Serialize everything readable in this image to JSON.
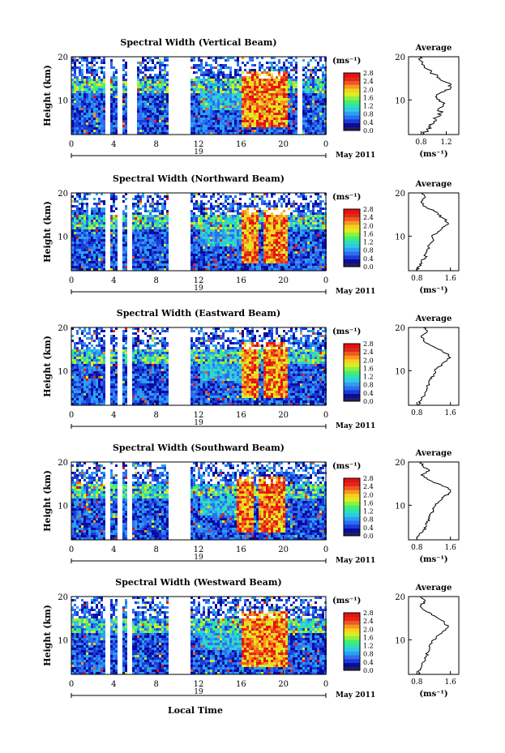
{
  "figure": {
    "xlabel": "Local Time",
    "date_label": "May 2011",
    "day_label": "19",
    "ylabel": "Height (km)",
    "unit_label": "(ms⁻¹)",
    "avg_title": "Average",
    "avg_xlabel": "(ms⁻¹)"
  },
  "colorbar": {
    "ticks": [
      "0.0",
      "0.4",
      "0.8",
      "1.2",
      "1.6",
      "2.0",
      "2.4",
      "2.8"
    ],
    "colors": [
      "#202060",
      "#0b0b9e",
      "#1a3cd8",
      "#2f6cf0",
      "#2aa0f0",
      "#30c8e8",
      "#30e0b0",
      "#40f070",
      "#90f040",
      "#d8f020",
      "#f8d020",
      "#f89820",
      "#f05820",
      "#e02818",
      "#e81010"
    ]
  },
  "chart_data": [
    {
      "type": "heatmap",
      "title": "Spectral Width (Vertical Beam)",
      "x_ticks": [
        "0",
        "4",
        "8",
        "12",
        "16",
        "20",
        "0"
      ],
      "y_ticks": [
        "20",
        "10"
      ],
      "ylim": [
        2,
        20
      ],
      "xlim": [
        0,
        24
      ],
      "gaps_hours": [
        [
          3.0,
          3.5
        ],
        [
          4.2,
          4.6
        ],
        [
          5.2,
          6.0
        ],
        [
          9.0,
          11.2
        ],
        [
          21.2,
          21.6
        ]
      ],
      "high_width_regions_hours": [
        [
          16.0,
          17.5
        ],
        [
          17.5,
          20.2
        ]
      ],
      "avg_profile": {
        "xlabel": "(ms⁻¹)",
        "x_ticks": [
          "0.8",
          "1.2"
        ],
        "xlim": [
          0.6,
          1.4
        ],
        "y_ticks": [
          "20",
          "10"
        ],
        "ylim": [
          2,
          20
        ],
        "height_km": [
          2,
          3,
          4,
          5,
          6,
          7,
          8,
          9,
          10,
          11,
          12,
          13,
          14,
          15,
          16,
          17,
          18,
          19,
          20
        ],
        "width_ms": [
          0.82,
          0.9,
          0.95,
          1.0,
          1.05,
          1.12,
          1.08,
          1.15,
          1.1,
          1.05,
          1.18,
          1.28,
          1.22,
          1.1,
          1.0,
          0.92,
          0.85,
          0.8,
          0.78
        ]
      }
    },
    {
      "type": "heatmap",
      "title": "Spectral Width (Northward Beam)",
      "x_ticks": [
        "0",
        "4",
        "8",
        "12",
        "16",
        "20",
        "0"
      ],
      "y_ticks": [
        "20",
        "10"
      ],
      "ylim": [
        2,
        20
      ],
      "xlim": [
        0,
        24
      ],
      "gaps_hours": [
        [
          3.0,
          3.5
        ],
        [
          4.2,
          4.6
        ],
        [
          5.2,
          5.6
        ],
        [
          9.0,
          11.2
        ]
      ],
      "high_width_regions_hours": [
        [
          16.0,
          17.5
        ],
        [
          18.0,
          20.2
        ]
      ],
      "avg_profile": {
        "xlabel": "(ms⁻¹)",
        "x_ticks": [
          "0.8",
          "1.6"
        ],
        "xlim": [
          0.6,
          1.8
        ],
        "y_ticks": [
          "20",
          "10"
        ],
        "ylim": [
          2,
          20
        ],
        "height_km": [
          2,
          3,
          4,
          5,
          6,
          7,
          8,
          9,
          10,
          11,
          12,
          13,
          14,
          15,
          16,
          17,
          18,
          19,
          20
        ],
        "width_ms": [
          0.8,
          0.85,
          0.9,
          1.0,
          1.02,
          1.05,
          1.1,
          1.2,
          1.15,
          1.3,
          1.4,
          1.55,
          1.45,
          1.3,
          1.2,
          0.95,
          0.9,
          1.0,
          0.9
        ]
      }
    },
    {
      "type": "heatmap",
      "title": "Spectral Width (Eastward Beam)",
      "x_ticks": [
        "0",
        "4",
        "8",
        "12",
        "16",
        "20",
        "0"
      ],
      "y_ticks": [
        "20",
        "10"
      ],
      "ylim": [
        2,
        20
      ],
      "xlim": [
        0,
        24
      ],
      "gaps_hours": [
        [
          3.0,
          3.5
        ],
        [
          4.2,
          4.6
        ],
        [
          5.2,
          5.6
        ],
        [
          9.0,
          11.2
        ]
      ],
      "high_width_regions_hours": [
        [
          16.0,
          17.5
        ],
        [
          18.0,
          20.2
        ]
      ],
      "avg_profile": {
        "xlabel": "",
        "x_ticks": [
          "0.8",
          "1.6"
        ],
        "xlim": [
          0.6,
          1.8
        ],
        "y_ticks": [
          "20",
          "10"
        ],
        "ylim": [
          2,
          20
        ],
        "height_km": [
          2,
          3,
          4,
          5,
          6,
          7,
          8,
          9,
          10,
          11,
          12,
          13,
          14,
          15,
          16,
          17,
          18,
          19,
          20
        ],
        "width_ms": [
          0.82,
          0.88,
          0.95,
          1.0,
          1.05,
          1.08,
          1.1,
          1.2,
          1.22,
          1.35,
          1.45,
          1.6,
          1.5,
          1.3,
          1.1,
          0.95,
          0.9,
          1.05,
          0.95
        ]
      }
    },
    {
      "type": "heatmap",
      "title": "Spectral Width (Southward Beam)",
      "x_ticks": [
        "0",
        "4",
        "8",
        "12",
        "16",
        "20",
        "0"
      ],
      "y_ticks": [
        "20",
        "10"
      ],
      "ylim": [
        2,
        20
      ],
      "xlim": [
        0,
        24
      ],
      "gaps_hours": [
        [
          3.0,
          3.5
        ],
        [
          4.2,
          4.6
        ],
        [
          5.2,
          5.6
        ],
        [
          9.0,
          11.2
        ]
      ],
      "high_width_regions_hours": [
        [
          15.5,
          17.0
        ],
        [
          17.5,
          20.0
        ]
      ],
      "avg_profile": {
        "xlabel": "(ms⁻¹)",
        "x_ticks": [
          "0.8",
          "1.6"
        ],
        "xlim": [
          0.6,
          1.8
        ],
        "y_ticks": [
          "20",
          "10"
        ],
        "ylim": [
          2,
          20
        ],
        "height_km": [
          2,
          3,
          4,
          5,
          6,
          7,
          8,
          9,
          10,
          11,
          12,
          13,
          14,
          15,
          16,
          17,
          18,
          19,
          20
        ],
        "width_ms": [
          0.8,
          0.85,
          0.95,
          1.02,
          1.05,
          1.1,
          1.12,
          1.2,
          1.25,
          1.35,
          1.45,
          1.6,
          1.55,
          1.3,
          1.05,
          0.9,
          1.1,
          0.95,
          0.9
        ]
      }
    },
    {
      "type": "heatmap",
      "title": "Spectral Width (Westward Beam)",
      "x_ticks": [
        "0",
        "4",
        "8",
        "12",
        "16",
        "20",
        "0"
      ],
      "y_ticks": [
        "20",
        "10"
      ],
      "ylim": [
        2,
        20
      ],
      "xlim": [
        0,
        24
      ],
      "gaps_hours": [
        [
          3.0,
          3.5
        ],
        [
          4.2,
          4.6
        ],
        [
          5.2,
          5.6
        ],
        [
          9.0,
          11.2
        ]
      ],
      "high_width_regions_hours": [
        [
          16.0,
          17.5
        ],
        [
          17.5,
          20.2
        ]
      ],
      "avg_profile": {
        "xlabel": "(ms⁻¹)",
        "x_ticks": [
          "0.8",
          "1.6"
        ],
        "xlim": [
          0.6,
          1.8
        ],
        "y_ticks": [
          "20",
          "10"
        ],
        "ylim": [
          2,
          20
        ],
        "height_km": [
          2,
          3,
          4,
          5,
          6,
          7,
          8,
          9,
          10,
          11,
          12,
          13,
          14,
          15,
          16,
          17,
          18,
          19,
          20
        ],
        "width_ms": [
          0.82,
          0.88,
          0.92,
          0.98,
          1.02,
          1.05,
          1.1,
          1.12,
          1.2,
          1.3,
          1.42,
          1.55,
          1.45,
          1.3,
          1.15,
          0.95,
          0.9,
          1.0,
          0.9
        ]
      }
    }
  ]
}
